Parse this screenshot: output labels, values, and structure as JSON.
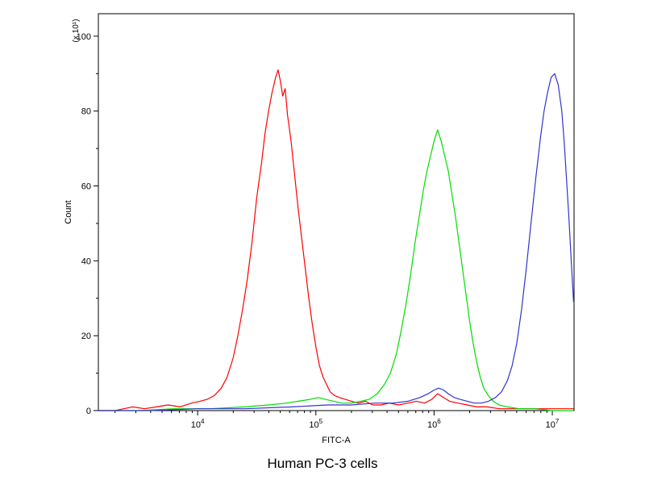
{
  "chart_data": {
    "type": "line",
    "title": "Human PC-3 cells",
    "xlabel": "FITC-A",
    "ylabel": "Count",
    "y_axis_multiplier": "(x 10¹)",
    "x_scale": "log10",
    "x_range_log": [
      3.16,
      7.184
    ],
    "ylim": [
      0,
      106
    ],
    "yticks": [
      0,
      20,
      40,
      60,
      80,
      100
    ],
    "ytick_minor": [
      10,
      30,
      50,
      70,
      90
    ],
    "xticks_decades": [
      4,
      5,
      6,
      7
    ],
    "grid": false,
    "legend": "none",
    "frame_color": "#000000",
    "series": [
      {
        "name": "red",
        "color": "#fe0000",
        "points": [
          [
            3.16,
            0
          ],
          [
            3.3,
            0
          ],
          [
            3.45,
            1
          ],
          [
            3.55,
            0.5
          ],
          [
            3.65,
            1
          ],
          [
            3.75,
            1.5
          ],
          [
            3.85,
            1
          ],
          [
            3.95,
            2
          ],
          [
            4.02,
            2.5
          ],
          [
            4.08,
            3
          ],
          [
            4.14,
            4
          ],
          [
            4.2,
            6
          ],
          [
            4.25,
            9
          ],
          [
            4.3,
            14
          ],
          [
            4.34,
            20
          ],
          [
            4.38,
            27
          ],
          [
            4.42,
            35
          ],
          [
            4.46,
            45
          ],
          [
            4.5,
            57
          ],
          [
            4.54,
            66
          ],
          [
            4.57,
            74
          ],
          [
            4.6,
            80
          ],
          [
            4.63,
            85
          ],
          [
            4.66,
            89
          ],
          [
            4.68,
            91
          ],
          [
            4.7,
            88
          ],
          [
            4.72,
            84
          ],
          [
            4.74,
            86
          ],
          [
            4.76,
            79
          ],
          [
            4.79,
            72
          ],
          [
            4.82,
            63
          ],
          [
            4.85,
            54
          ],
          [
            4.88,
            46
          ],
          [
            4.91,
            38
          ],
          [
            4.94,
            30
          ],
          [
            4.97,
            23
          ],
          [
            5.0,
            17
          ],
          [
            5.03,
            12
          ],
          [
            5.06,
            9
          ],
          [
            5.09,
            7
          ],
          [
            5.12,
            5
          ],
          [
            5.16,
            4
          ],
          [
            5.2,
            3.5
          ],
          [
            5.25,
            3
          ],
          [
            5.3,
            2.5
          ],
          [
            5.36,
            2
          ],
          [
            5.42,
            2.5
          ],
          [
            5.48,
            1.5
          ],
          [
            5.55,
            1.5
          ],
          [
            5.62,
            2
          ],
          [
            5.7,
            1.5
          ],
          [
            5.78,
            2
          ],
          [
            5.85,
            2.5
          ],
          [
            5.92,
            2
          ],
          [
            5.98,
            3
          ],
          [
            6.03,
            4.5
          ],
          [
            6.08,
            3.5
          ],
          [
            6.13,
            2.5
          ],
          [
            6.2,
            2
          ],
          [
            6.28,
            1.5
          ],
          [
            6.36,
            1
          ],
          [
            6.45,
            1
          ],
          [
            6.55,
            0.5
          ],
          [
            6.7,
            0.5
          ],
          [
            6.9,
            0.5
          ],
          [
            7.1,
            0.5
          ],
          [
            7.18,
            0.5
          ]
        ]
      },
      {
        "name": "green",
        "color": "#00dd00",
        "points": [
          [
            3.16,
            0
          ],
          [
            3.5,
            0
          ],
          [
            3.8,
            0.5
          ],
          [
            4.1,
            0.5
          ],
          [
            4.4,
            1
          ],
          [
            4.6,
            1.5
          ],
          [
            4.75,
            2
          ],
          [
            4.85,
            2.5
          ],
          [
            4.95,
            3
          ],
          [
            5.02,
            3.5
          ],
          [
            5.08,
            3
          ],
          [
            5.15,
            2.5
          ],
          [
            5.22,
            2
          ],
          [
            5.3,
            2
          ],
          [
            5.38,
            2.5
          ],
          [
            5.45,
            3
          ],
          [
            5.52,
            4.5
          ],
          [
            5.58,
            7
          ],
          [
            5.63,
            10
          ],
          [
            5.68,
            15
          ],
          [
            5.72,
            21
          ],
          [
            5.76,
            28
          ],
          [
            5.8,
            36
          ],
          [
            5.84,
            45
          ],
          [
            5.88,
            53
          ],
          [
            5.91,
            59
          ],
          [
            5.94,
            64
          ],
          [
            5.97,
            68
          ],
          [
            6.0,
            72
          ],
          [
            6.03,
            75
          ],
          [
            6.06,
            72
          ],
          [
            6.09,
            68
          ],
          [
            6.12,
            64
          ],
          [
            6.15,
            58
          ],
          [
            6.18,
            52
          ],
          [
            6.21,
            45
          ],
          [
            6.24,
            38
          ],
          [
            6.27,
            31
          ],
          [
            6.3,
            24
          ],
          [
            6.33,
            18
          ],
          [
            6.36,
            13
          ],
          [
            6.39,
            9
          ],
          [
            6.42,
            6
          ],
          [
            6.46,
            4
          ],
          [
            6.5,
            2.5
          ],
          [
            6.55,
            1.5
          ],
          [
            6.62,
            1
          ],
          [
            6.72,
            0.5
          ],
          [
            6.85,
            0.5
          ],
          [
            7.0,
            0
          ],
          [
            7.18,
            0
          ]
        ]
      },
      {
        "name": "blue",
        "color": "#3333cc",
        "points": [
          [
            3.16,
            0
          ],
          [
            3.6,
            0
          ],
          [
            4.0,
            0.5
          ],
          [
            4.4,
            0.5
          ],
          [
            4.8,
            1
          ],
          [
            5.1,
            1.5
          ],
          [
            5.3,
            1.5
          ],
          [
            5.5,
            2
          ],
          [
            5.65,
            2
          ],
          [
            5.78,
            2.5
          ],
          [
            5.88,
            3.5
          ],
          [
            5.95,
            4.5
          ],
          [
            6.0,
            5.5
          ],
          [
            6.04,
            6
          ],
          [
            6.08,
            5.5
          ],
          [
            6.12,
            4.5
          ],
          [
            6.17,
            3.5
          ],
          [
            6.22,
            3
          ],
          [
            6.28,
            2.5
          ],
          [
            6.34,
            2
          ],
          [
            6.4,
            2
          ],
          [
            6.46,
            2.5
          ],
          [
            6.52,
            3.5
          ],
          [
            6.57,
            5
          ],
          [
            6.62,
            8
          ],
          [
            6.66,
            12
          ],
          [
            6.7,
            18
          ],
          [
            6.74,
            27
          ],
          [
            6.78,
            38
          ],
          [
            6.82,
            50
          ],
          [
            6.86,
            62
          ],
          [
            6.9,
            73
          ],
          [
            6.93,
            80
          ],
          [
            6.96,
            85
          ],
          [
            6.99,
            89
          ],
          [
            7.02,
            90
          ],
          [
            7.05,
            87
          ],
          [
            7.08,
            80
          ],
          [
            7.1,
            72
          ],
          [
            7.12,
            62
          ],
          [
            7.14,
            52
          ],
          [
            7.16,
            40
          ],
          [
            7.18,
            29
          ]
        ]
      }
    ]
  }
}
